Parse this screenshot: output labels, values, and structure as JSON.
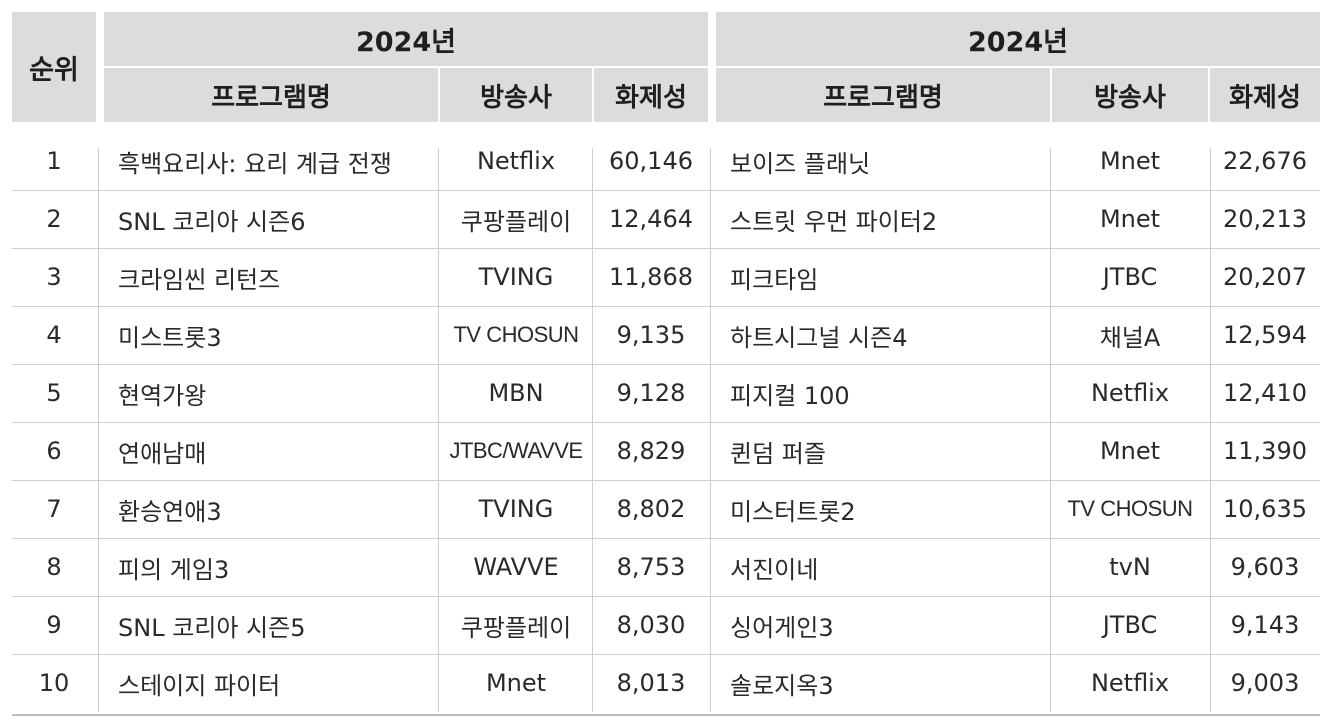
{
  "header": {
    "rank_label": "순위",
    "left_year": "2024년",
    "right_year": "2024년",
    "columns": [
      "프로그램명",
      "방송사",
      "화제성"
    ]
  },
  "left": [
    {
      "rank": "1",
      "program": "흑백요리사: 요리 계급 전쟁",
      "channel": "Netflix",
      "score": "60,146"
    },
    {
      "rank": "2",
      "program": "SNL 코리아 시즌6",
      "channel": "쿠팡플레이",
      "score": "12,464"
    },
    {
      "rank": "3",
      "program": "크라임씬 리턴즈",
      "channel": "TVING",
      "score": "11,868"
    },
    {
      "rank": "4",
      "program": "미스트롯3",
      "channel": "TV CHOSUN",
      "score": "9,135"
    },
    {
      "rank": "5",
      "program": "현역가왕",
      "channel": "MBN",
      "score": "9,128"
    },
    {
      "rank": "6",
      "program": "연애남매",
      "channel": "JTBC/WAVVE",
      "score": "8,829"
    },
    {
      "rank": "7",
      "program": "환승연애3",
      "channel": "TVING",
      "score": "8,802"
    },
    {
      "rank": "8",
      "program": "피의 게임3",
      "channel": "WAVVE",
      "score": "8,753"
    },
    {
      "rank": "9",
      "program": "SNL 코리아 시즌5",
      "channel": "쿠팡플레이",
      "score": "8,030"
    },
    {
      "rank": "10",
      "program": "스테이지 파이터",
      "channel": "Mnet",
      "score": "8,013"
    }
  ],
  "right": [
    {
      "program": "보이즈 플래닛",
      "channel": "Mnet",
      "score": "22,676"
    },
    {
      "program": "스트릿 우먼 파이터2",
      "channel": "Mnet",
      "score": "20,213"
    },
    {
      "program": "피크타임",
      "channel": "JTBC",
      "score": "20,207"
    },
    {
      "program": "하트시그널 시즌4",
      "channel": "채널A",
      "score": "12,594"
    },
    {
      "program": "피지컬 100",
      "channel": "Netflix",
      "score": "12,410"
    },
    {
      "program": "퀸덤 퍼즐",
      "channel": "Mnet",
      "score": "11,390"
    },
    {
      "program": "미스터트롯2",
      "channel": "TV CHOSUN",
      "score": "10,635"
    },
    {
      "program": "서진이네",
      "channel": "tvN",
      "score": "9,603"
    },
    {
      "program": "싱어게인3",
      "channel": "JTBC",
      "score": "9,143"
    },
    {
      "program": "솔로지옥3",
      "channel": "Netflix",
      "score": "9,003"
    }
  ]
}
